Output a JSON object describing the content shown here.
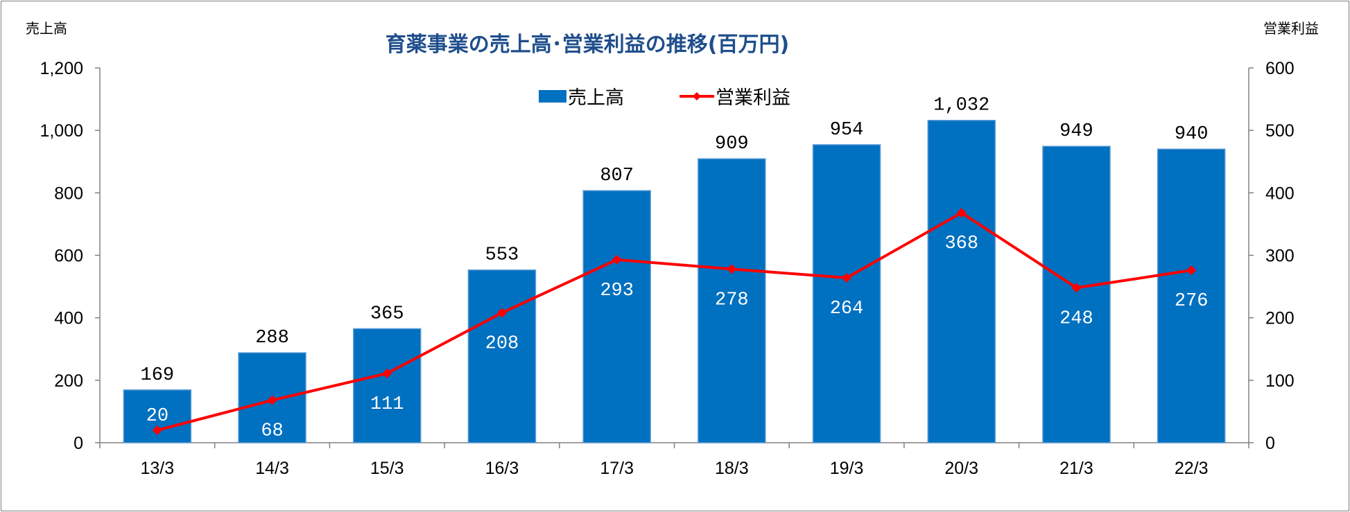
{
  "chart_data": {
    "type": "bar",
    "title": "育薬事業の売上高･営業利益の推移(百万円)",
    "ylabel": "売上高",
    "y2label": "営業利益",
    "categories": [
      "13/3",
      "14/3",
      "15/3",
      "16/3",
      "17/3",
      "18/3",
      "19/3",
      "20/3",
      "21/3",
      "22/3"
    ],
    "ylim": [
      0,
      1200
    ],
    "yticks": [
      "0",
      "200",
      "400",
      "600",
      "800",
      "1,000",
      "1,200"
    ],
    "y2lim": [
      0,
      600
    ],
    "y2ticks": [
      "0",
      "100",
      "200",
      "300",
      "400",
      "500",
      "600"
    ],
    "series": [
      {
        "name": "売上高",
        "type": "bar",
        "axis": "left",
        "color": "#0070c0",
        "values": [
          169,
          288,
          365,
          553,
          807,
          909,
          954,
          1032,
          949,
          940
        ],
        "labels": [
          "169",
          "288",
          "365",
          "553",
          "807",
          "909",
          "954",
          "1,032",
          "949",
          "940"
        ]
      },
      {
        "name": "営業利益",
        "type": "line",
        "axis": "right",
        "color": "#ff0000",
        "values": [
          20,
          68,
          111,
          208,
          293,
          278,
          264,
          368,
          248,
          276
        ],
        "labels": [
          "20",
          "68",
          "111",
          "208",
          "293",
          "278",
          "264",
          "368",
          "248",
          "276"
        ]
      }
    ],
    "legend_position": "top-center",
    "grid": false
  }
}
